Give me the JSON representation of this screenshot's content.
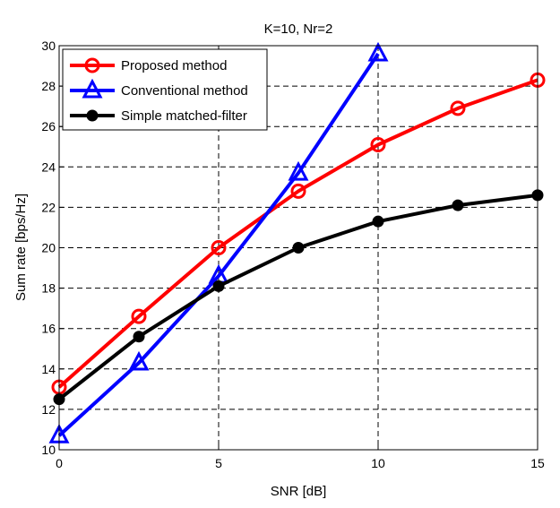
{
  "chart_data": {
    "type": "line",
    "title": "K=10, Nr=2",
    "xlabel": "SNR [dB]",
    "ylabel": "Sum rate [bps/Hz]",
    "xlim": [
      0,
      15
    ],
    "ylim": [
      10,
      30
    ],
    "xticks": [
      0,
      5,
      10,
      15
    ],
    "yticks": [
      10,
      12,
      14,
      16,
      18,
      20,
      22,
      24,
      26,
      28,
      30
    ],
    "grid": true,
    "legend_position": "top-left",
    "series": [
      {
        "name": "Proposed method",
        "color": "#ff0000",
        "marker": "circle",
        "x": [
          0,
          2.5,
          5,
          7.5,
          10,
          12.5,
          15
        ],
        "y": [
          13.1,
          16.6,
          20.0,
          22.8,
          25.1,
          26.9,
          28.3
        ]
      },
      {
        "name": "Conventional method",
        "color": "#0000ff",
        "marker": "triangle",
        "x": [
          0,
          2.5,
          5,
          7.5,
          10
        ],
        "y": [
          10.7,
          14.3,
          18.6,
          23.7,
          29.6
        ]
      },
      {
        "name": "Simple matched-filter",
        "color": "#000000",
        "marker": "filled-circle",
        "x": [
          0,
          2.5,
          5,
          7.5,
          10,
          12.5,
          15
        ],
        "y": [
          12.5,
          15.6,
          18.1,
          20.0,
          21.3,
          22.1,
          22.6
        ]
      }
    ]
  }
}
